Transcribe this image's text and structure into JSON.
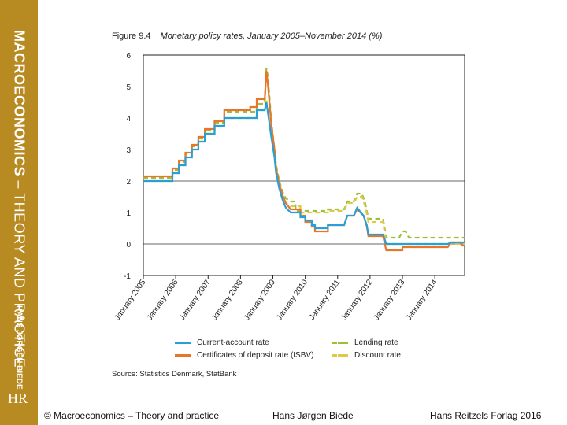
{
  "sidebar": {
    "title_bold": "MACROECONOMICS",
    "title_rest": " – THEORY AND PRACTICE",
    "author": "HANS JØRGEN BIEDE",
    "logo": "HR"
  },
  "figure": {
    "number": "Figure 9.4",
    "title": "Monetary policy rates, January 2005–November 2014 (%)",
    "source": "Source: Statistics Denmark, StatBank"
  },
  "legend": {
    "current_account": "Current-account rate",
    "cd_rate": "Certificates of deposit rate (ISBV)",
    "lending": "Lending rate",
    "discount": "Discount rate"
  },
  "footer": {
    "left": "© Macroeconomics – Theory and practice",
    "center": "Hans Jørgen Biede",
    "right": "Hans Reitzels Forlag 2016"
  },
  "chart_data": {
    "type": "line",
    "title": "Monetary policy rates, January 2005–November 2014 (%)",
    "xlabel": "",
    "ylabel": "",
    "ylim": [
      -1,
      6
    ],
    "yticks": [
      -1,
      0,
      1,
      2,
      3,
      4,
      5,
      6
    ],
    "xlim": [
      2005.0,
      2014.92
    ],
    "xticks": [
      2005,
      2006,
      2007,
      2008,
      2009,
      2010,
      2011,
      2012,
      2013,
      2014
    ],
    "xtick_labels": [
      "January 2005",
      "January 2006",
      "January 2007",
      "January 2008",
      "January 2009",
      "January 2010",
      "January 2011",
      "January 2012",
      "January 2013",
      "January 2014"
    ],
    "grid": "horizontal at y=2, baseline at y=0",
    "legend_position": "bottom",
    "colors": {
      "current_account": "#2a9fd6",
      "cd_rate": "#e8762a",
      "lending": "#9cbf3c",
      "discount": "#e0c84a",
      "combined": "#b0922a"
    },
    "series": [
      {
        "name": "Current-account rate",
        "style": "solid",
        "points": [
          [
            2005.0,
            2.0
          ],
          [
            2005.9,
            2.0
          ],
          [
            2005.9,
            2.25
          ],
          [
            2006.1,
            2.25
          ],
          [
            2006.1,
            2.5
          ],
          [
            2006.3,
            2.5
          ],
          [
            2006.3,
            2.75
          ],
          [
            2006.5,
            2.75
          ],
          [
            2006.5,
            3.0
          ],
          [
            2006.7,
            3.0
          ],
          [
            2006.7,
            3.25
          ],
          [
            2006.9,
            3.25
          ],
          [
            2006.9,
            3.5
          ],
          [
            2007.2,
            3.5
          ],
          [
            2007.2,
            3.75
          ],
          [
            2007.5,
            3.75
          ],
          [
            2007.5,
            4.0
          ],
          [
            2008.5,
            4.0
          ],
          [
            2008.5,
            4.25
          ],
          [
            2008.75,
            4.25
          ],
          [
            2008.8,
            4.5
          ],
          [
            2008.85,
            4.15
          ],
          [
            2008.95,
            3.4
          ],
          [
            2009.05,
            2.75
          ],
          [
            2009.1,
            2.25
          ],
          [
            2009.2,
            1.75
          ],
          [
            2009.3,
            1.4
          ],
          [
            2009.4,
            1.15
          ],
          [
            2009.55,
            1.0
          ],
          [
            2009.85,
            1.0
          ],
          [
            2009.85,
            0.85
          ],
          [
            2010.0,
            0.85
          ],
          [
            2010.0,
            0.75
          ],
          [
            2010.2,
            0.75
          ],
          [
            2010.2,
            0.6
          ],
          [
            2010.3,
            0.6
          ],
          [
            2010.3,
            0.5
          ],
          [
            2010.7,
            0.5
          ],
          [
            2010.7,
            0.6
          ],
          [
            2011.2,
            0.6
          ],
          [
            2011.3,
            0.9
          ],
          [
            2011.5,
            0.9
          ],
          [
            2011.6,
            1.15
          ],
          [
            2011.8,
            0.9
          ],
          [
            2011.9,
            0.6
          ],
          [
            2011.95,
            0.3
          ],
          [
            2012.4,
            0.3
          ],
          [
            2012.5,
            0.0
          ],
          [
            2014.4,
            0.0
          ],
          [
            2014.5,
            0.05
          ],
          [
            2014.92,
            0.05
          ]
        ]
      },
      {
        "name": "Certificates of deposit rate (ISBV)",
        "style": "solid",
        "points": [
          [
            2005.0,
            2.15
          ],
          [
            2005.9,
            2.15
          ],
          [
            2005.9,
            2.4
          ],
          [
            2006.1,
            2.4
          ],
          [
            2006.1,
            2.65
          ],
          [
            2006.3,
            2.65
          ],
          [
            2006.3,
            2.9
          ],
          [
            2006.5,
            2.9
          ],
          [
            2006.5,
            3.15
          ],
          [
            2006.7,
            3.15
          ],
          [
            2006.7,
            3.4
          ],
          [
            2006.9,
            3.4
          ],
          [
            2006.9,
            3.65
          ],
          [
            2007.2,
            3.65
          ],
          [
            2007.2,
            3.9
          ],
          [
            2007.5,
            3.9
          ],
          [
            2007.5,
            4.25
          ],
          [
            2008.3,
            4.25
          ],
          [
            2008.3,
            4.35
          ],
          [
            2008.5,
            4.35
          ],
          [
            2008.5,
            4.6
          ],
          [
            2008.75,
            4.6
          ],
          [
            2008.8,
            5.5
          ],
          [
            2008.85,
            5.05
          ],
          [
            2008.95,
            3.8
          ],
          [
            2009.05,
            3.0
          ],
          [
            2009.1,
            2.4
          ],
          [
            2009.2,
            1.9
          ],
          [
            2009.3,
            1.55
          ],
          [
            2009.4,
            1.3
          ],
          [
            2009.55,
            1.1
          ],
          [
            2009.85,
            1.1
          ],
          [
            2009.85,
            0.9
          ],
          [
            2010.0,
            0.9
          ],
          [
            2010.0,
            0.7
          ],
          [
            2010.2,
            0.7
          ],
          [
            2010.2,
            0.55
          ],
          [
            2010.3,
            0.55
          ],
          [
            2010.3,
            0.4
          ],
          [
            2010.7,
            0.4
          ],
          [
            2010.7,
            0.6
          ],
          [
            2011.2,
            0.6
          ],
          [
            2011.3,
            0.9
          ],
          [
            2011.5,
            0.9
          ],
          [
            2011.6,
            1.1
          ],
          [
            2011.8,
            0.9
          ],
          [
            2011.9,
            0.55
          ],
          [
            2011.95,
            0.25
          ],
          [
            2012.4,
            0.25
          ],
          [
            2012.5,
            -0.2
          ],
          [
            2013.0,
            -0.2
          ],
          [
            2013.0,
            -0.1
          ],
          [
            2014.4,
            -0.1
          ],
          [
            2014.5,
            0.05
          ],
          [
            2014.8,
            0.05
          ],
          [
            2014.85,
            -0.05
          ],
          [
            2014.92,
            -0.05
          ]
        ]
      },
      {
        "name": "Lending rate",
        "style": "dashed",
        "points": [
          [
            2005.0,
            2.1
          ],
          [
            2005.9,
            2.1
          ],
          [
            2005.9,
            2.35
          ],
          [
            2006.1,
            2.35
          ],
          [
            2006.1,
            2.6
          ],
          [
            2006.3,
            2.6
          ],
          [
            2006.3,
            2.85
          ],
          [
            2006.5,
            2.85
          ],
          [
            2006.5,
            3.1
          ],
          [
            2006.7,
            3.1
          ],
          [
            2006.7,
            3.35
          ],
          [
            2006.9,
            3.35
          ],
          [
            2006.9,
            3.6
          ],
          [
            2007.2,
            3.6
          ],
          [
            2007.2,
            3.85
          ],
          [
            2007.5,
            3.85
          ],
          [
            2007.5,
            4.2
          ],
          [
            2008.5,
            4.2
          ],
          [
            2008.5,
            4.45
          ],
          [
            2008.75,
            4.45
          ],
          [
            2008.8,
            5.6
          ],
          [
            2008.85,
            5.3
          ],
          [
            2008.95,
            3.9
          ],
          [
            2009.05,
            3.0
          ],
          [
            2009.1,
            2.5
          ],
          [
            2009.2,
            2.0
          ],
          [
            2009.3,
            1.65
          ],
          [
            2009.4,
            1.45
          ],
          [
            2009.55,
            1.35
          ],
          [
            2009.7,
            1.35
          ],
          [
            2009.7,
            1.05
          ],
          [
            2010.7,
            1.05
          ],
          [
            2010.7,
            1.1
          ],
          [
            2011.2,
            1.1
          ],
          [
            2011.3,
            1.35
          ],
          [
            2011.5,
            1.35
          ],
          [
            2011.6,
            1.6
          ],
          [
            2011.75,
            1.6
          ],
          [
            2011.85,
            1.3
          ],
          [
            2011.95,
            0.8
          ],
          [
            2012.4,
            0.8
          ],
          [
            2012.5,
            0.2
          ],
          [
            2012.9,
            0.2
          ],
          [
            2013.0,
            0.4
          ],
          [
            2013.1,
            0.4
          ],
          [
            2013.2,
            0.2
          ],
          [
            2014.92,
            0.2
          ]
        ]
      },
      {
        "name": "Discount rate",
        "style": "dashed",
        "points": [
          [
            2005.0,
            2.0
          ],
          [
            2005.9,
            2.0
          ],
          [
            2005.9,
            2.25
          ],
          [
            2006.1,
            2.25
          ],
          [
            2006.1,
            2.5
          ],
          [
            2006.3,
            2.5
          ],
          [
            2006.3,
            2.75
          ],
          [
            2006.5,
            2.75
          ],
          [
            2006.5,
            3.0
          ],
          [
            2006.7,
            3.0
          ],
          [
            2006.7,
            3.25
          ],
          [
            2006.9,
            3.25
          ],
          [
            2006.9,
            3.5
          ],
          [
            2007.2,
            3.5
          ],
          [
            2007.2,
            3.75
          ],
          [
            2007.5,
            3.75
          ],
          [
            2007.5,
            4.0
          ],
          [
            2008.5,
            4.0
          ],
          [
            2008.5,
            4.25
          ],
          [
            2008.75,
            4.25
          ],
          [
            2008.8,
            4.6
          ],
          [
            2008.85,
            4.2
          ],
          [
            2008.95,
            3.5
          ],
          [
            2009.05,
            2.8
          ],
          [
            2009.1,
            2.3
          ],
          [
            2009.2,
            1.8
          ],
          [
            2009.3,
            1.5
          ],
          [
            2009.4,
            1.3
          ],
          [
            2009.55,
            1.2
          ],
          [
            2009.85,
            1.2
          ],
          [
            2009.85,
            1.0
          ],
          [
            2010.7,
            1.0
          ],
          [
            2010.7,
            1.05
          ],
          [
            2011.2,
            1.05
          ],
          [
            2011.3,
            1.3
          ],
          [
            2011.5,
            1.3
          ],
          [
            2011.6,
            1.5
          ],
          [
            2011.75,
            1.5
          ],
          [
            2011.85,
            1.2
          ],
          [
            2011.95,
            0.7
          ],
          [
            2012.4,
            0.7
          ],
          [
            2012.5,
            0.0
          ],
          [
            2014.92,
            0.0
          ]
        ]
      }
    ]
  }
}
